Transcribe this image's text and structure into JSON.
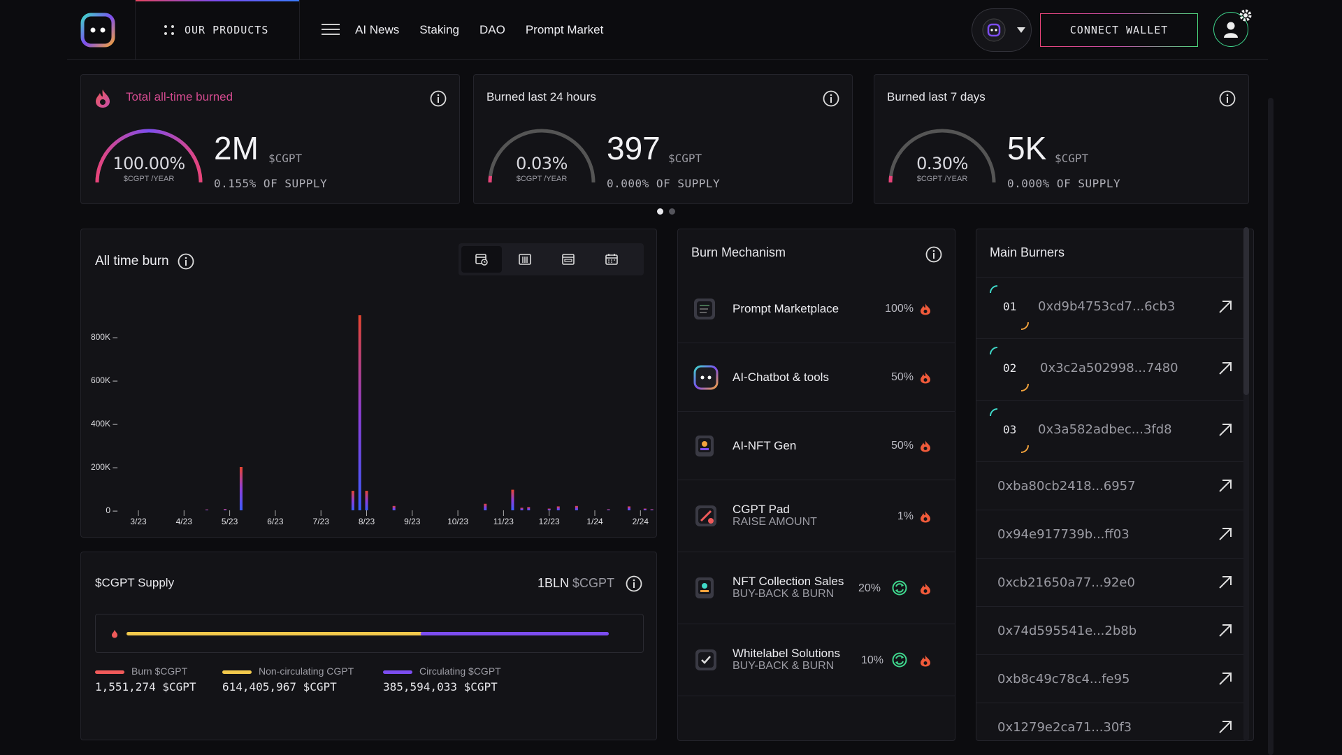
{
  "header": {
    "products_label": "OUR PRODUCTS",
    "nav": [
      "AI News",
      "Staking",
      "DAO",
      "Prompt Market"
    ],
    "connect_label": "CONNECT WALLET"
  },
  "stats": [
    {
      "title": "Total all-time burned",
      "gauge_pct": "100.00%",
      "gauge_fraction": 1.0,
      "gauge_unit": "$CGPT /YEAR",
      "value": "2M",
      "token": "$CGPT",
      "supply": "0.155% OF SUPPLY"
    },
    {
      "title": "Burned last 24 hours",
      "gauge_pct": "0.03%",
      "gauge_fraction": 0.0003,
      "gauge_unit": "$CGPT /YEAR",
      "value": "397",
      "token": "$CGPT",
      "supply": "0.000% OF SUPPLY"
    },
    {
      "title": "Burned last 7 days",
      "gauge_pct": "0.30%",
      "gauge_fraction": 0.003,
      "gauge_unit": "$CGPT /YEAR",
      "value": "5K",
      "token": "$CGPT",
      "supply": "0.000% OF SUPPLY"
    }
  ],
  "burn_chart": {
    "title": "All time burn"
  },
  "chart_data": {
    "type": "bar",
    "categories": [
      "3/23",
      "4/23",
      "5/23",
      "6/23",
      "7/23",
      "8/23",
      "9/23",
      "10/23",
      "11/23",
      "12/23",
      "1/24",
      "2/24"
    ],
    "y_ticks": [
      "800K –",
      "600K –",
      "400K –",
      "200K –",
      "0 –"
    ],
    "ylim": [
      0,
      900000
    ],
    "series": [
      {
        "values": [
          {
            "x": 4.5,
            "y": 4000
          },
          {
            "x": 4.9,
            "y": 6000
          },
          {
            "x": 5.25,
            "y": 200000
          },
          {
            "x": 7.7,
            "y": 90000
          },
          {
            "x": 7.85,
            "y": 900000
          },
          {
            "x": 8.0,
            "y": 90000
          },
          {
            "x": 8.6,
            "y": 20000
          },
          {
            "x": 10.6,
            "y": 30000
          },
          {
            "x": 11.2,
            "y": 95000
          },
          {
            "x": 11.4,
            "y": 12000
          },
          {
            "x": 11.55,
            "y": 15000
          },
          {
            "x": 12.0,
            "y": 8000
          },
          {
            "x": 12.2,
            "y": 18000
          },
          {
            "x": 12.6,
            "y": 20000
          },
          {
            "x": 13.3,
            "y": 5000
          },
          {
            "x": 13.75,
            "y": 18000
          },
          {
            "x": 14.1,
            "y": 8000
          },
          {
            "x": 14.25,
            "y": 5000
          }
        ]
      }
    ]
  },
  "supply": {
    "title": "$CGPT Supply",
    "total_value": "1BLN",
    "total_token": "$CGPT",
    "burn_fraction": 0.00155,
    "noncirc_fraction": 0.614,
    "legend": [
      {
        "label": "Burn $CGPT",
        "value": "1,551,274 $CGPT",
        "color": "#f05a5a"
      },
      {
        "label": "Non-circulating CGPT",
        "value": "614,405,967 $CGPT",
        "color": "#f2c94c"
      },
      {
        "label": "Circulating $CGPT",
        "value": "385,594,033 $CGPT",
        "color": "#7c4df0"
      }
    ]
  },
  "burn_mechanism": {
    "title": "Burn Mechanism",
    "items": [
      {
        "name": "Prompt Marketplace",
        "sub": "",
        "pct": "100%",
        "recycle": false
      },
      {
        "name": "AI-Chatbot & tools",
        "sub": "",
        "pct": "50%",
        "recycle": false
      },
      {
        "name": "AI-NFT Gen",
        "sub": "",
        "pct": "50%",
        "recycle": false
      },
      {
        "name": "CGPT Pad",
        "sub": "RAISE AMOUNT",
        "pct": "1%",
        "recycle": false
      },
      {
        "name": "NFT Collection Sales",
        "sub": "BUY-BACK & BURN",
        "pct": "20%",
        "recycle": true
      },
      {
        "name": "Whitelabel Solutions",
        "sub": "BUY-BACK & BURN",
        "pct": "10%",
        "recycle": true
      }
    ]
  },
  "main_burners": {
    "title": "Main Burners",
    "items": [
      {
        "rank": "01",
        "address": "0xd9b4753cd7...6cb3"
      },
      {
        "rank": "02",
        "address": "0x3c2a502998...7480"
      },
      {
        "rank": "03",
        "address": "0x3a582adbec...3fd8"
      },
      {
        "rank": "",
        "address": "0xba80cb2418...6957"
      },
      {
        "rank": "",
        "address": "0x94e917739b...ff03"
      },
      {
        "rank": "",
        "address": "0xcb21650a77...92e0"
      },
      {
        "rank": "",
        "address": "0x74d595541e...2b8b"
      },
      {
        "rank": "",
        "address": "0xb8c49c78c4...fe95"
      },
      {
        "rank": "",
        "address": "0x1279e2ca71...30f3"
      }
    ]
  },
  "colors": {
    "accent_red": "#f05a5a",
    "accent_purple": "#7c4df0",
    "accent_yellow": "#f2c94c",
    "accent_green": "#3fd88e"
  }
}
